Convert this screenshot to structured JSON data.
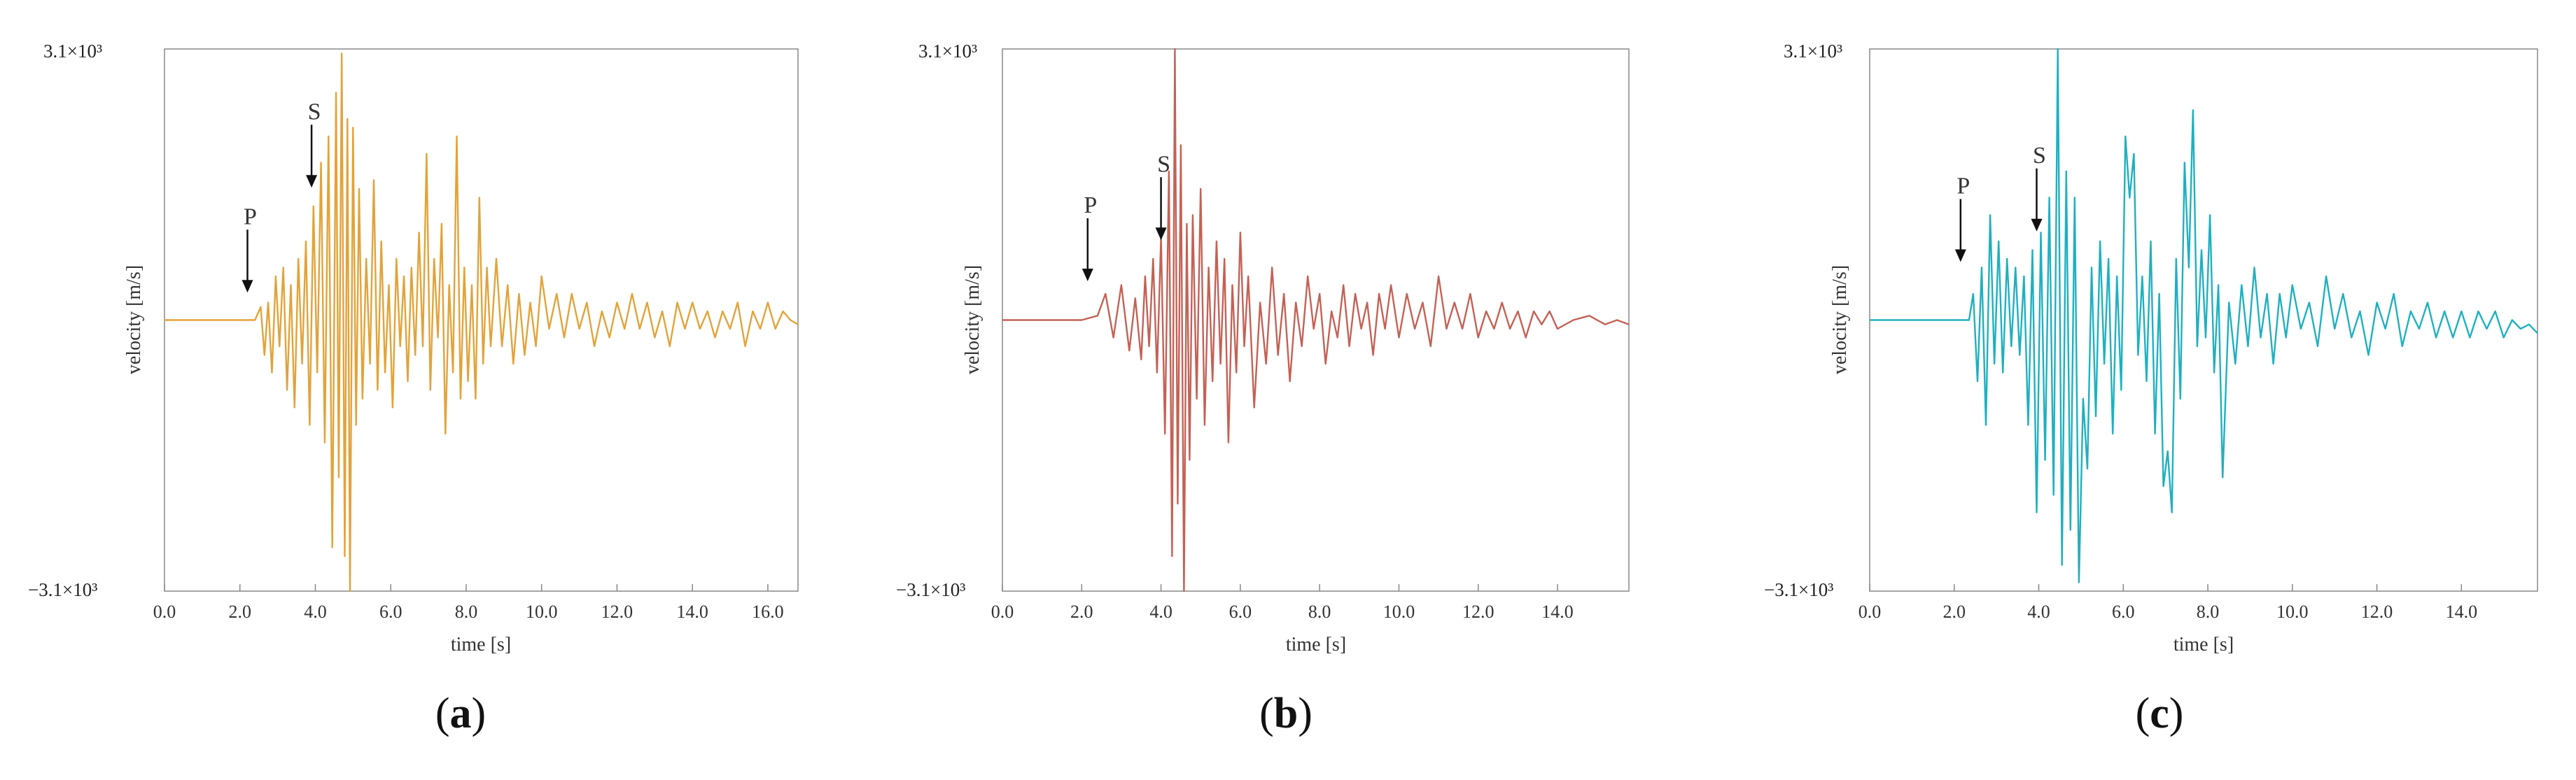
{
  "chart_data": [
    {
      "type": "line",
      "panel_label": "a",
      "color": "#e2a33a",
      "xlabel": "time [s]",
      "ylabel": "velocity  [m/s]",
      "ymax_label": "3.1×10³",
      "ymin_label": "−3.1×10³",
      "ylim": [
        -3100,
        3100
      ],
      "xlim": [
        0,
        16.8
      ],
      "xticks": [
        "0.0",
        "2.0",
        "4.0",
        "6.0",
        "8.0",
        "10.0",
        "12.0",
        "14.0",
        "16.0"
      ],
      "arrivals": [
        {
          "label": "P",
          "time": 2.2,
          "tip_velocity": 250
        },
        {
          "label": "S",
          "time": 3.9,
          "tip_velocity": 1450
        }
      ],
      "series": [
        {
          "x": [
            0.0,
            1.0,
            2.0,
            2.4,
            2.55,
            2.65,
            2.75,
            2.85,
            2.95,
            3.05,
            3.15,
            3.25,
            3.35,
            3.45,
            3.55,
            3.65,
            3.75,
            3.85,
            3.95,
            4.05,
            4.15,
            4.25,
            4.35,
            4.45,
            4.55,
            4.62,
            4.7,
            4.78,
            4.85,
            4.92,
            5.0,
            5.08,
            5.16,
            5.25,
            5.35,
            5.45,
            5.55,
            5.65,
            5.75,
            5.85,
            5.95,
            6.05,
            6.15,
            6.25,
            6.35,
            6.45,
            6.55,
            6.65,
            6.75,
            6.85,
            6.95,
            7.05,
            7.15,
            7.25,
            7.35,
            7.45,
            7.55,
            7.65,
            7.75,
            7.85,
            7.95,
            8.05,
            8.15,
            8.25,
            8.35,
            8.45,
            8.55,
            8.65,
            8.8,
            8.95,
            9.1,
            9.25,
            9.4,
            9.55,
            9.7,
            9.85,
            10.0,
            10.2,
            10.4,
            10.6,
            10.8,
            11.0,
            11.2,
            11.4,
            11.6,
            11.8,
            12.0,
            12.2,
            12.4,
            12.6,
            12.8,
            13.0,
            13.2,
            13.4,
            13.6,
            13.8,
            14.0,
            14.2,
            14.4,
            14.6,
            14.8,
            15.0,
            15.2,
            15.4,
            15.6,
            15.8,
            16.0,
            16.2,
            16.4,
            16.6,
            16.8
          ],
          "y": [
            0,
            0,
            0,
            0,
            150,
            -400,
            200,
            -600,
            500,
            -300,
            600,
            -800,
            400,
            -1000,
            700,
            -500,
            900,
            -1200,
            1300,
            -600,
            1800,
            -1400,
            2100,
            -2600,
            2600,
            -1800,
            3050,
            -2700,
            2300,
            -3100,
            2200,
            -1200,
            1500,
            -900,
            700,
            -500,
            1600,
            -800,
            900,
            -600,
            400,
            -1000,
            700,
            -300,
            500,
            -700,
            600,
            -400,
            1000,
            -300,
            1900,
            -800,
            700,
            -200,
            1100,
            -1300,
            400,
            -600,
            2100,
            -900,
            600,
            -700,
            400,
            -900,
            1400,
            -500,
            600,
            -300,
            700,
            -300,
            400,
            -500,
            300,
            -400,
            200,
            -300,
            500,
            -100,
            300,
            -200,
            300,
            -100,
            200,
            -300,
            100,
            -200,
            200,
            -100,
            300,
            -100,
            200,
            -200,
            100,
            -300,
            200,
            -100,
            200,
            -100,
            100,
            -200,
            100,
            -100,
            200,
            -300,
            100,
            -100,
            200,
            -100,
            100,
            0,
            -50
          ]
        }
      ]
    },
    {
      "type": "line",
      "panel_label": "b",
      "color": "#c46155",
      "xlabel": "time [s]",
      "ylabel": "velocity  [m/s]",
      "ymax_label": "3.1×10³",
      "ymin_label": "−3.1×10³",
      "ylim": [
        -3100,
        3100
      ],
      "xlim": [
        0,
        15.8
      ],
      "xticks": [
        "0.0",
        "2.0",
        "4.0",
        "6.0",
        "8.0",
        "10.0",
        "12.0",
        "14.0"
      ],
      "arrivals": [
        {
          "label": "P",
          "time": 2.15,
          "tip_velocity": 380
        },
        {
          "label": "S",
          "time": 4.0,
          "tip_velocity": 850
        }
      ],
      "series": [
        {
          "x": [
            0.0,
            1.0,
            2.0,
            2.4,
            2.6,
            2.8,
            3.0,
            3.2,
            3.35,
            3.5,
            3.6,
            3.7,
            3.8,
            3.9,
            4.0,
            4.1,
            4.2,
            4.28,
            4.35,
            4.42,
            4.5,
            4.58,
            4.65,
            4.72,
            4.8,
            4.9,
            5.0,
            5.1,
            5.2,
            5.3,
            5.4,
            5.5,
            5.6,
            5.7,
            5.8,
            5.9,
            6.0,
            6.1,
            6.2,
            6.35,
            6.5,
            6.65,
            6.8,
            6.95,
            7.1,
            7.25,
            7.4,
            7.55,
            7.7,
            7.85,
            8.0,
            8.15,
            8.3,
            8.45,
            8.6,
            8.75,
            8.9,
            9.05,
            9.2,
            9.35,
            9.5,
            9.65,
            9.8,
            10.0,
            10.2,
            10.4,
            10.6,
            10.8,
            11.0,
            11.2,
            11.4,
            11.6,
            11.8,
            12.0,
            12.2,
            12.4,
            12.6,
            12.8,
            13.0,
            13.2,
            13.4,
            13.6,
            13.8,
            14.0,
            14.4,
            14.8,
            15.2,
            15.5,
            15.8
          ],
          "y": [
            0,
            0,
            0,
            50,
            300,
            -200,
            400,
            -350,
            250,
            -450,
            500,
            -300,
            700,
            -600,
            950,
            -1300,
            1700,
            -2700,
            3100,
            -2100,
            2000,
            -3100,
            1100,
            -1600,
            1200,
            -900,
            1500,
            -1200,
            600,
            -700,
            900,
            -500,
            700,
            -1400,
            400,
            -600,
            1000,
            -300,
            500,
            -1000,
            200,
            -500,
            600,
            -400,
            300,
            -700,
            200,
            -300,
            500,
            -100,
            300,
            -500,
            100,
            -200,
            400,
            -300,
            300,
            -100,
            200,
            -400,
            300,
            -100,
            400,
            -200,
            300,
            -100,
            200,
            -300,
            500,
            -100,
            200,
            -100,
            300,
            -200,
            100,
            -100,
            200,
            -100,
            100,
            -200,
            100,
            -50,
            100,
            -100,
            0,
            50,
            -50,
            0,
            -50
          ]
        }
      ]
    },
    {
      "type": "line",
      "panel_label": "c",
      "color": "#1fb0c0",
      "xlabel": "time [s]",
      "ylabel": "velocity  [m/s]",
      "ymax_label": "3.1×10³",
      "ymin_label": "−3.1×10³",
      "ylim": [
        -3100,
        3100
      ],
      "xlim": [
        0,
        15.8
      ],
      "xticks": [
        "0.0",
        "2.0",
        "4.0",
        "6.0",
        "8.0",
        "10.0",
        "12.0",
        "14.0"
      ],
      "arrivals": [
        {
          "label": "P",
          "time": 2.15,
          "tip_velocity": 600
        },
        {
          "label": "S",
          "time": 3.95,
          "tip_velocity": 950
        }
      ],
      "series": [
        {
          "x": [
            0.0,
            1.0,
            2.0,
            2.35,
            2.45,
            2.55,
            2.65,
            2.75,
            2.85,
            2.95,
            3.05,
            3.15,
            3.25,
            3.35,
            3.45,
            3.55,
            3.65,
            3.75,
            3.85,
            3.95,
            4.05,
            4.15,
            4.25,
            4.35,
            4.45,
            4.55,
            4.65,
            4.75,
            4.85,
            4.95,
            5.05,
            5.15,
            5.25,
            5.35,
            5.45,
            5.55,
            5.65,
            5.75,
            5.85,
            5.95,
            6.05,
            6.15,
            6.25,
            6.35,
            6.45,
            6.55,
            6.65,
            6.75,
            6.85,
            6.95,
            7.05,
            7.15,
            7.25,
            7.35,
            7.45,
            7.55,
            7.65,
            7.75,
            7.85,
            7.95,
            8.05,
            8.15,
            8.25,
            8.35,
            8.5,
            8.65,
            8.8,
            8.95,
            9.1,
            9.25,
            9.4,
            9.55,
            9.7,
            9.85,
            10.0,
            10.2,
            10.4,
            10.6,
            10.8,
            11.0,
            11.2,
            11.4,
            11.6,
            11.8,
            12.0,
            12.2,
            12.4,
            12.6,
            12.8,
            13.0,
            13.2,
            13.4,
            13.6,
            13.8,
            14.0,
            14.2,
            14.4,
            14.6,
            14.8,
            15.0,
            15.2,
            15.4,
            15.6,
            15.8
          ],
          "y": [
            0,
            0,
            0,
            0,
            300,
            -700,
            600,
            -1200,
            1200,
            -500,
            900,
            -600,
            700,
            -300,
            600,
            -400,
            500,
            -1200,
            800,
            -2200,
            1000,
            -1600,
            1400,
            -2000,
            3100,
            -2800,
            1700,
            -2400,
            1400,
            -3000,
            -900,
            -1700,
            600,
            -1100,
            900,
            -500,
            700,
            -1300,
            500,
            -800,
            2100,
            1400,
            1900,
            -400,
            500,
            -700,
            900,
            -1300,
            300,
            -1900,
            -1500,
            -2200,
            700,
            -900,
            1800,
            600,
            2400,
            -300,
            800,
            -200,
            1200,
            -600,
            400,
            -1800,
            200,
            -500,
            400,
            -300,
            600,
            -200,
            300,
            -500,
            300,
            -200,
            400,
            -100,
            200,
            -300,
            500,
            -100,
            300,
            -200,
            100,
            -400,
            200,
            -100,
            300,
            -300,
            100,
            -100,
            200,
            -200,
            100,
            -200,
            100,
            -200,
            100,
            -100,
            100,
            -200,
            0,
            -100,
            -50,
            -150
          ]
        }
      ]
    }
  ]
}
